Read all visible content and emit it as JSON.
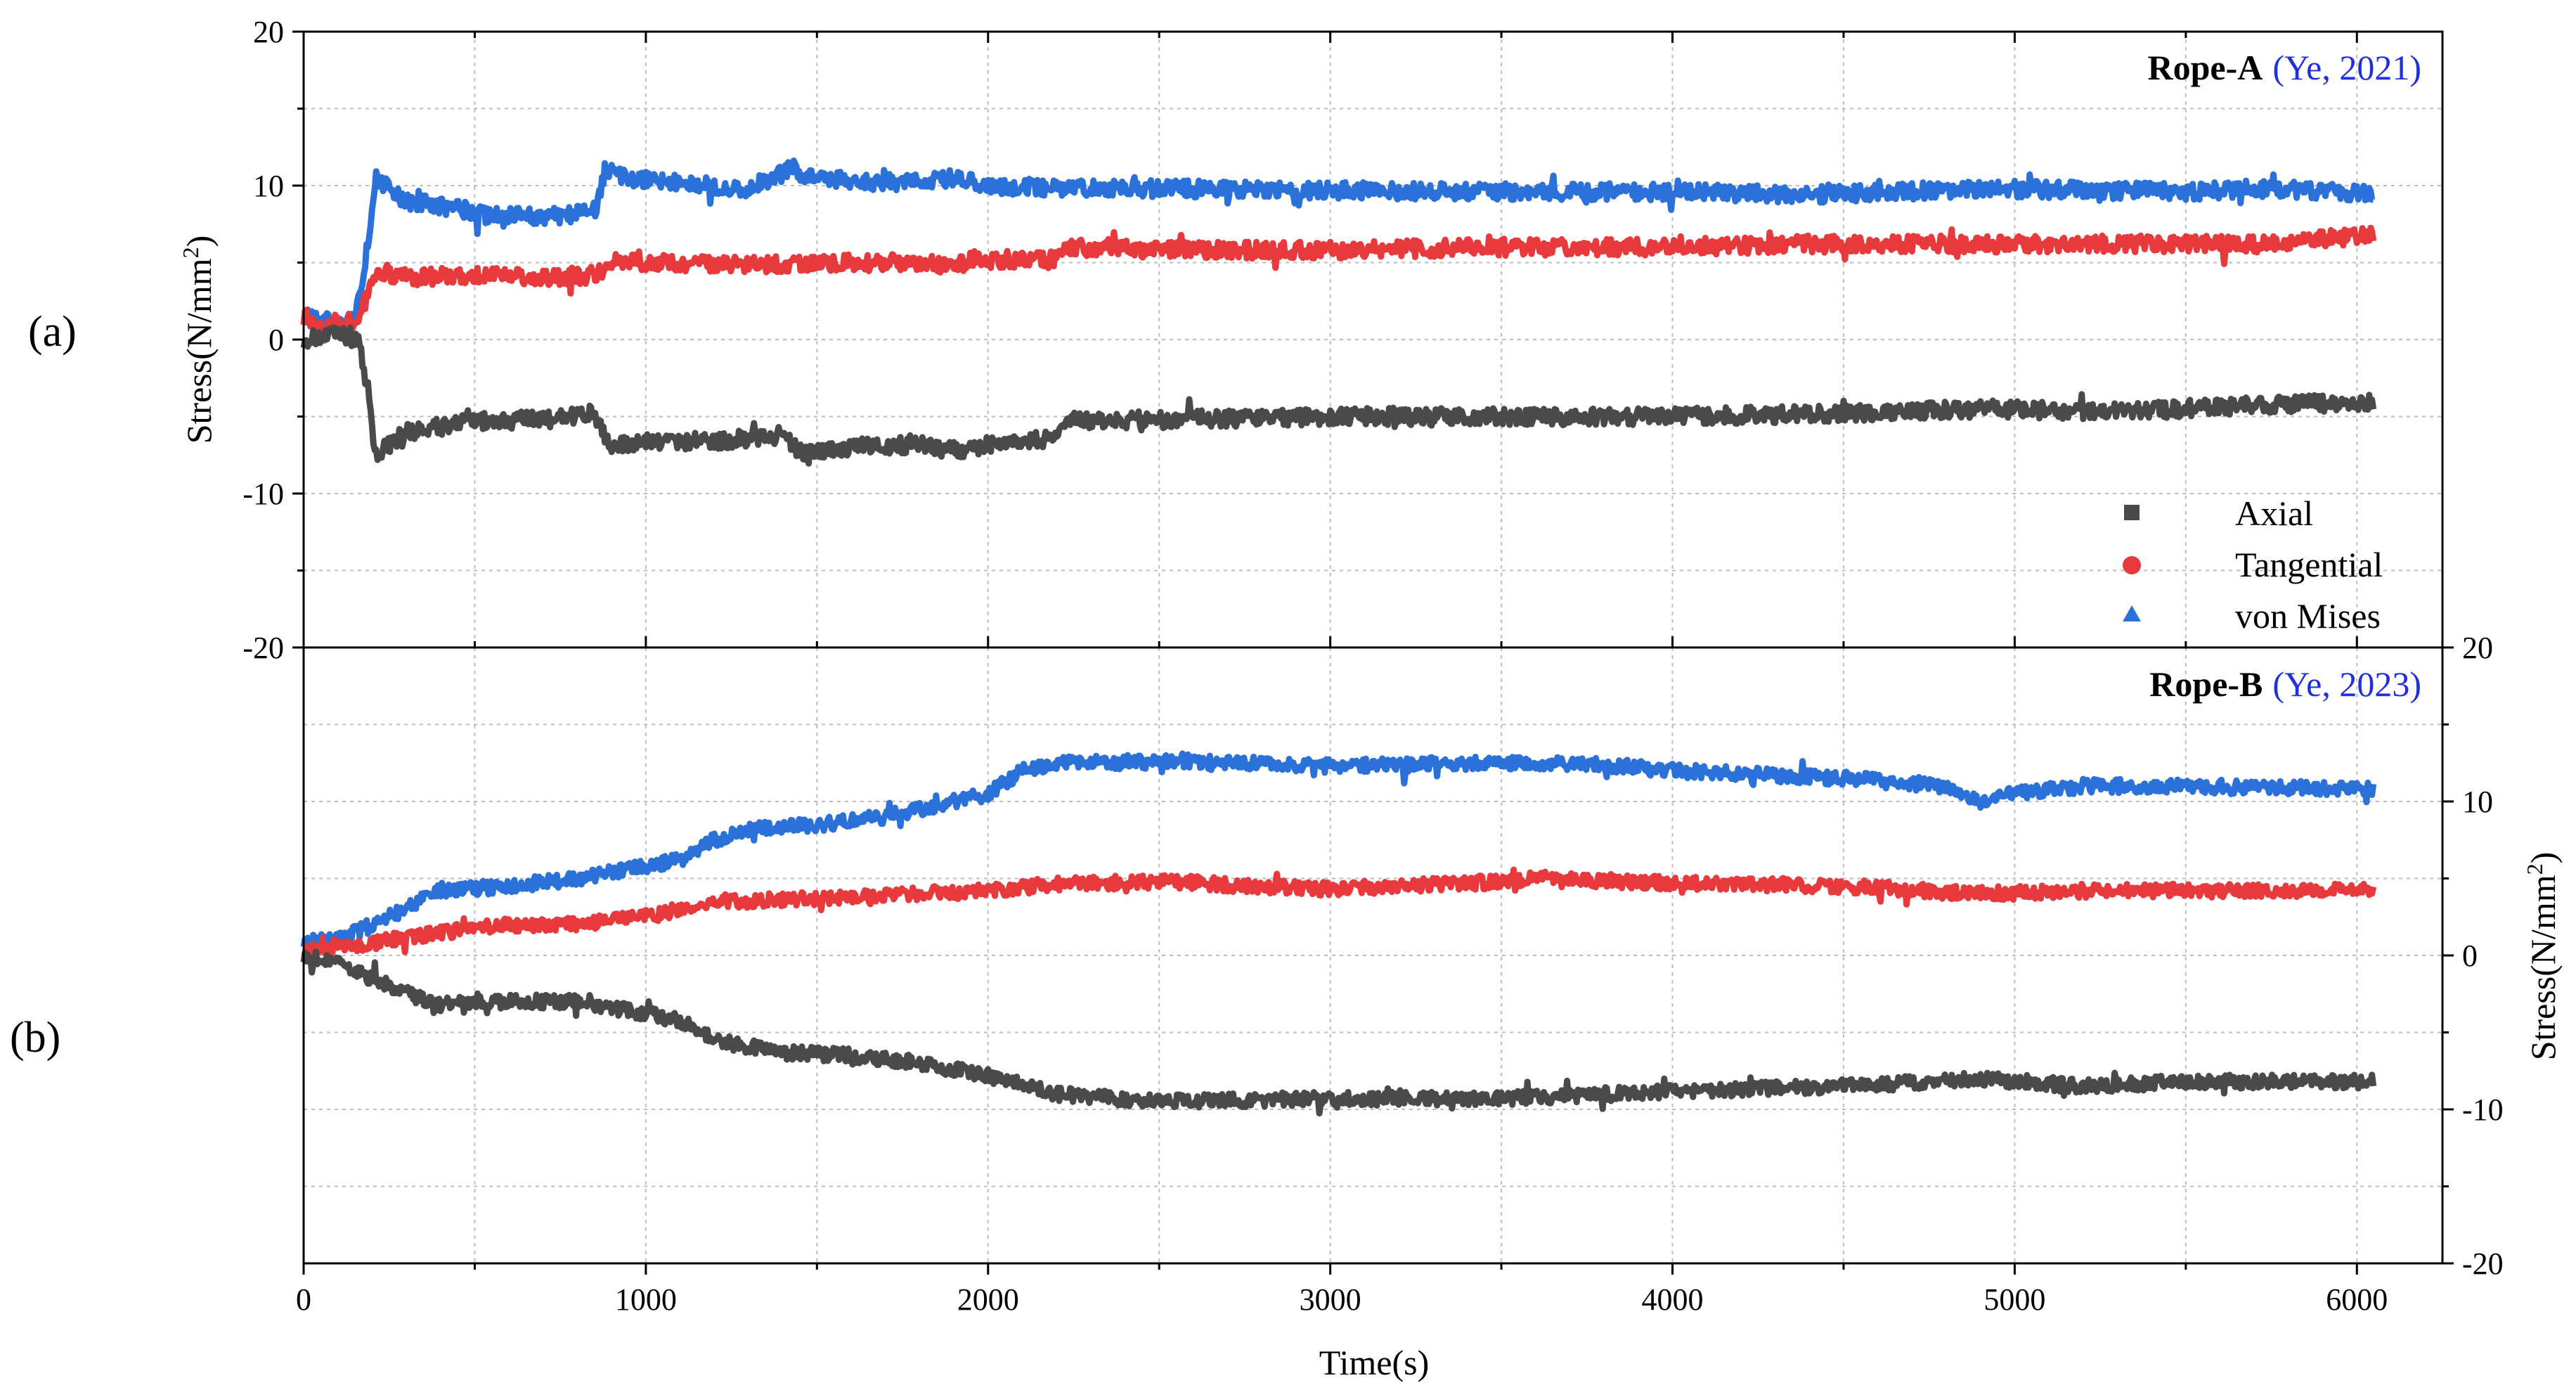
{
  "figure": {
    "panel_a_label": "(a)",
    "panel_b_label": "(b)",
    "xlabel": "Time(s)",
    "legend": [
      "Axial",
      "Tangential",
      "von Mises"
    ]
  },
  "colors": {
    "axial": "#4a4a4a",
    "tangential": "#e8393c",
    "von_mises": "#2a72d9",
    "citation": "#1f2fe0",
    "grid": "#bdbdbd"
  },
  "chart_data": [
    {
      "type": "line",
      "panel": "(a)",
      "title": "Rope-A",
      "citation": "(Ye, 2021)",
      "xlabel": "Time(s)",
      "ylabel": "Stress(N/mm²)",
      "xlim": [
        0,
        6250
      ],
      "ylim": [
        -20,
        20
      ],
      "x_ticks": [
        0,
        1000,
        2000,
        3000,
        4000,
        5000,
        6000
      ],
      "y_ticks": [
        -20,
        -10,
        0,
        10,
        20
      ],
      "y_axis_side": "left",
      "grid": true,
      "legend_position": "bottom-right",
      "series": [
        {
          "name": "Axial",
          "marker": "square",
          "color_key": "axial",
          "x": [
            0,
            100,
            160,
            190,
            210,
            300,
            500,
            700,
            840,
            900,
            1000,
            1200,
            1400,
            1460,
            1600,
            1800,
            1900,
            2000,
            2200,
            2240,
            2500,
            3000,
            3500,
            4000,
            4500,
            4900,
            5300,
            5750,
            6050
          ],
          "y": [
            0,
            0.3,
            0,
            -3.5,
            -7.5,
            -6,
            -5.3,
            -5.2,
            -4.8,
            -7,
            -6.6,
            -6.6,
            -6.2,
            -7.5,
            -7,
            -6.8,
            -7.2,
            -6.8,
            -6.4,
            -5.3,
            -5.2,
            -5,
            -5,
            -5,
            -4.8,
            -4.5,
            -4.7,
            -4.2,
            -4.1
          ]
        },
        {
          "name": "Tangential",
          "marker": "circle",
          "color_key": "tangential",
          "x": [
            0,
            50,
            150,
            180,
            210,
            300,
            500,
            700,
            850,
            900,
            1000,
            1300,
            1500,
            1800,
            1900,
            1960,
            2200,
            2240,
            2500,
            3000,
            3500,
            4000,
            4400,
            4900,
            5500,
            5700,
            6050
          ],
          "y": [
            1.5,
            1,
            1.2,
            2.5,
            4.5,
            4,
            4.2,
            4,
            4.2,
            5,
            5,
            4.8,
            5,
            5,
            4.8,
            5.2,
            5.2,
            6,
            5.8,
            5.8,
            6,
            6,
            6.2,
            6.2,
            6.2,
            6.2,
            6.8
          ]
        },
        {
          "name": "von Mises",
          "marker": "triangle",
          "color_key": "von_mises",
          "x": [
            0,
            50,
            150,
            180,
            210,
            300,
            450,
            550,
            700,
            850,
            880,
            950,
            1100,
            1300,
            1440,
            1460,
            1700,
            1900,
            2000,
            2240,
            2500,
            3000,
            3500,
            4000,
            4400,
            4900,
            5500,
            5700,
            6050
          ],
          "y": [
            1.5,
            1.2,
            1.2,
            5,
            10.5,
            9,
            8.5,
            8,
            8,
            8.2,
            11,
            10.5,
            10.2,
            9.8,
            11.2,
            10.5,
            10.2,
            10.5,
            10,
            9.8,
            9.8,
            9.7,
            9.6,
            9.6,
            9.4,
            9.8,
            9.6,
            9.8,
            9.5
          ]
        }
      ]
    },
    {
      "type": "line",
      "panel": "(b)",
      "title": "Rope-B",
      "citation": "(Ye, 2023)",
      "xlabel": "Time(s)",
      "ylabel": "Stress(N/mm²)",
      "xlim": [
        0,
        6250
      ],
      "ylim": [
        -20,
        20
      ],
      "x_ticks": [
        0,
        1000,
        2000,
        3000,
        4000,
        5000,
        6000
      ],
      "y_ticks": [
        -20,
        -10,
        0,
        10,
        20
      ],
      "y_axis_side": "right",
      "grid": true,
      "series": [
        {
          "name": "Axial",
          "marker": "square",
          "color_key": "axial",
          "x": [
            0,
            100,
            250,
            400,
            600,
            800,
            1000,
            1100,
            1200,
            1400,
            1600,
            1800,
            2000,
            2200,
            2500,
            3000,
            3500,
            4000,
            4500,
            4900,
            5200,
            5500,
            6050
          ],
          "y": [
            0,
            -0.5,
            -2,
            -3.2,
            -3,
            -3,
            -3.8,
            -4.2,
            -5.5,
            -6.3,
            -6.5,
            -7,
            -7.8,
            -9,
            -9.5,
            -9.3,
            -9.3,
            -8.8,
            -8.5,
            -8,
            -8.5,
            -8.2,
            -8.2
          ]
        },
        {
          "name": "Tangential",
          "marker": "circle",
          "color_key": "tangential",
          "x": [
            0,
            200,
            400,
            600,
            800,
            1000,
            1200,
            1400,
            1600,
            1800,
            2000,
            2200,
            2500,
            3000,
            3500,
            3600,
            4000,
            4500,
            4900,
            5200,
            5500,
            6050
          ],
          "y": [
            0.4,
            0.8,
            1.5,
            2,
            2,
            2.5,
            3.5,
            3.6,
            3.8,
            4,
            4.2,
            4.6,
            4.8,
            4.3,
            4.8,
            5,
            4.7,
            4.5,
            4,
            4.2,
            4.2,
            4.2
          ]
        },
        {
          "name": "von Mises",
          "marker": "triangle",
          "color_key": "von_mises",
          "x": [
            0,
            100,
            250,
            400,
            600,
            800,
            1000,
            1100,
            1200,
            1300,
            1500,
            1700,
            1900,
            2000,
            2100,
            2200,
            2600,
            3000,
            3500,
            3800,
            4000,
            4500,
            4800,
            4900,
            5000,
            5200,
            5500,
            6050
          ],
          "y": [
            1,
            1,
            2.5,
            4.2,
            4.5,
            5,
            5.8,
            6.2,
            7.5,
            8.2,
            8.5,
            9,
            10,
            10.5,
            12,
            12.5,
            12.6,
            12.3,
            12.5,
            12.4,
            12,
            11.5,
            11,
            10,
            10.5,
            11,
            11,
            10.8
          ]
        }
      ]
    }
  ]
}
